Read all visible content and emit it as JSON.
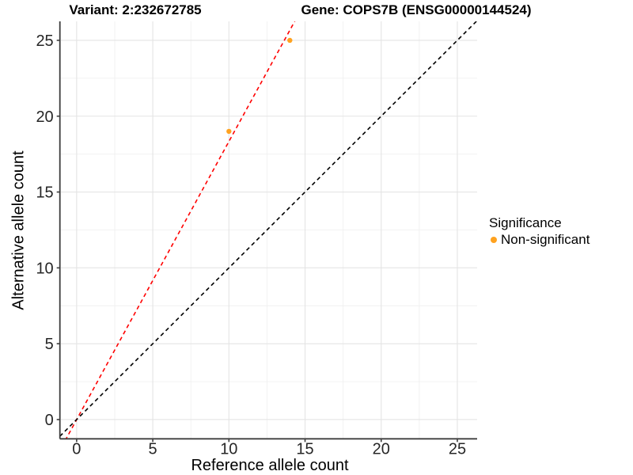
{
  "titles": {
    "variant": "Variant: 2:232672785",
    "gene": "Gene: COPS7B (ENSG00000144524)"
  },
  "chart_data": {
    "type": "scatter",
    "xlabel": "Reference allele count",
    "ylabel": "Alternative allele count",
    "xlim": [
      -1.1,
      26.3
    ],
    "ylim": [
      -1.27,
      26.25
    ],
    "xticks": [
      0,
      5,
      10,
      15,
      20,
      25
    ],
    "yticks": [
      0,
      5,
      10,
      15,
      20,
      25
    ],
    "xticks_minor": [
      2.5,
      7.5,
      12.5,
      17.5,
      22.5
    ],
    "yticks_minor": [
      2.5,
      7.5,
      12.5,
      17.5,
      22.5
    ],
    "grid": true,
    "series": [
      {
        "name": "Non-significant",
        "color": "#FFA21F",
        "points": [
          [
            10,
            19
          ],
          [
            14,
            25
          ]
        ]
      }
    ],
    "lines": [
      {
        "name": "fit-line",
        "slope": 1.8333,
        "intercept": 0,
        "color": "#FF0000",
        "dashed": true
      },
      {
        "name": "identity-line",
        "slope": 1,
        "intercept": 0,
        "color": "#000000",
        "dashed": true
      }
    ],
    "legend": {
      "position": "right",
      "title": "Significance",
      "items": [
        {
          "label": "Non-significant",
          "color": "#FFA21F"
        }
      ]
    },
    "colors": {
      "grid_major": "#e4e4e4",
      "grid_minor": "#f0f0f0",
      "axis_line": "#3d3d3d",
      "tick_label": "#262626"
    }
  }
}
